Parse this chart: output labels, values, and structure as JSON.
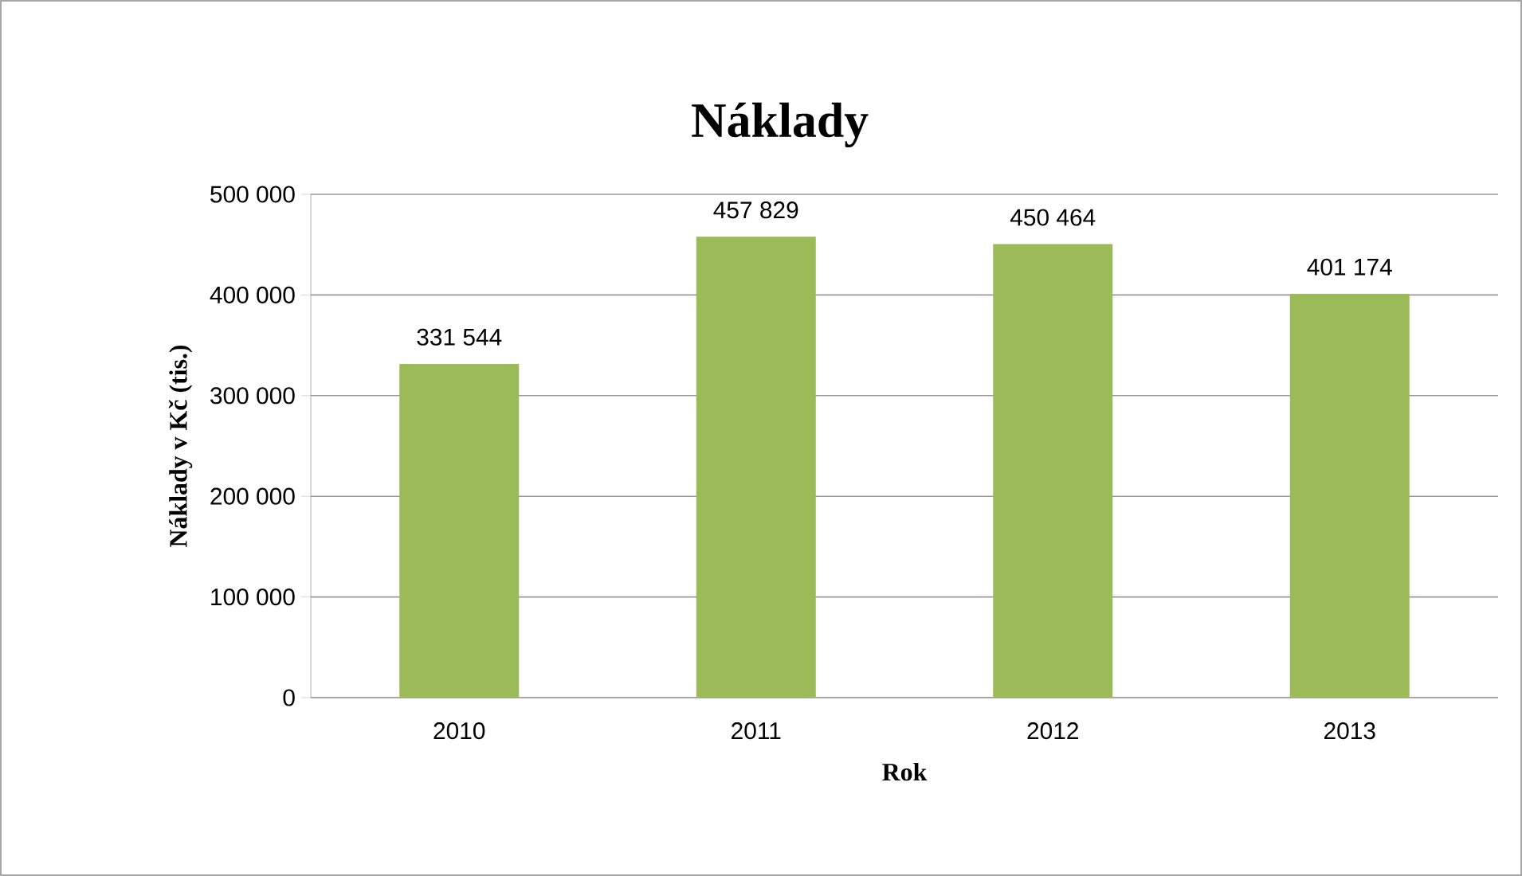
{
  "chart_data": {
    "type": "bar",
    "title": "Náklady",
    "xlabel": "Rok",
    "ylabel": "Náklady v Kč (tis.)",
    "categories": [
      "2010",
      "2011",
      "2012",
      "2013"
    ],
    "values": [
      331544,
      457829,
      450464,
      401174
    ],
    "value_labels": [
      "331 544",
      "457 829",
      "450 464",
      "401 174"
    ],
    "color": "#9bbb59",
    "ylim": [
      0,
      500000
    ],
    "yticks": [
      {
        "value": 0,
        "label": "0"
      },
      {
        "value": 100000,
        "label": "100 000"
      },
      {
        "value": 200000,
        "label": "200 000"
      },
      {
        "value": 300000,
        "label": "300 000"
      },
      {
        "value": 400000,
        "label": "400 000"
      },
      {
        "value": 500000,
        "label": "500 000"
      }
    ],
    "grid": "y"
  }
}
